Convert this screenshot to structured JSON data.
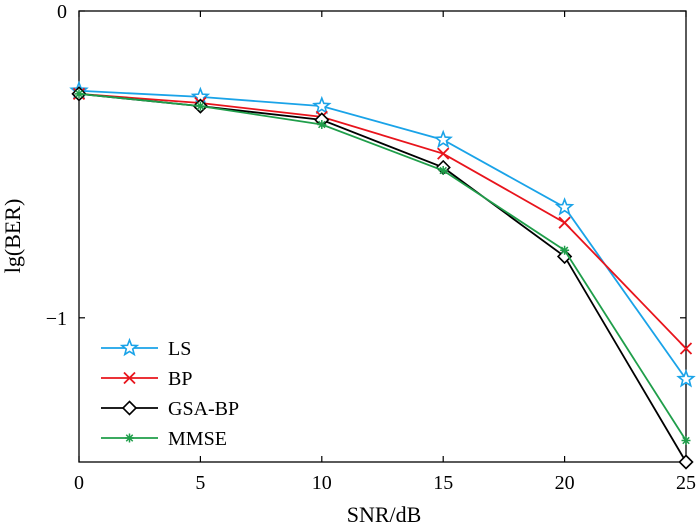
{
  "chart_data": {
    "type": "line",
    "title": "",
    "xlabel": "SNR/dB",
    "ylabel": "lg(BER)",
    "x": [
      0,
      5,
      10,
      15,
      20,
      25
    ],
    "xticks": [
      "0",
      "5",
      "10",
      "15",
      "20",
      "25"
    ],
    "yticks": [
      {
        "value": 0,
        "label": "0"
      },
      {
        "value": -1,
        "label": "−1"
      }
    ],
    "xlim": [
      0,
      25
    ],
    "ylim": [
      -1.47,
      0
    ],
    "grid": false,
    "legend_position": "bottom-left",
    "series": [
      {
        "name": "LS",
        "color": "#1aa3e8",
        "marker": "star",
        "values": [
          -0.26,
          -0.28,
          -0.31,
          -0.42,
          -0.64,
          -1.2
        ]
      },
      {
        "name": "BP",
        "color": "#e8141c",
        "marker": "x",
        "values": [
          -0.27,
          -0.3,
          -0.345,
          -0.465,
          -0.69,
          -1.1
        ]
      },
      {
        "name": "GSA-BP",
        "color": "#000000",
        "marker": "diamond",
        "values": [
          -0.27,
          -0.31,
          -0.355,
          -0.51,
          -0.8,
          -1.47
        ]
      },
      {
        "name": "MMSE",
        "color": "#1f9e4a",
        "marker": "asterisk",
        "values": [
          -0.27,
          -0.31,
          -0.37,
          -0.52,
          -0.78,
          -1.4
        ]
      }
    ]
  }
}
